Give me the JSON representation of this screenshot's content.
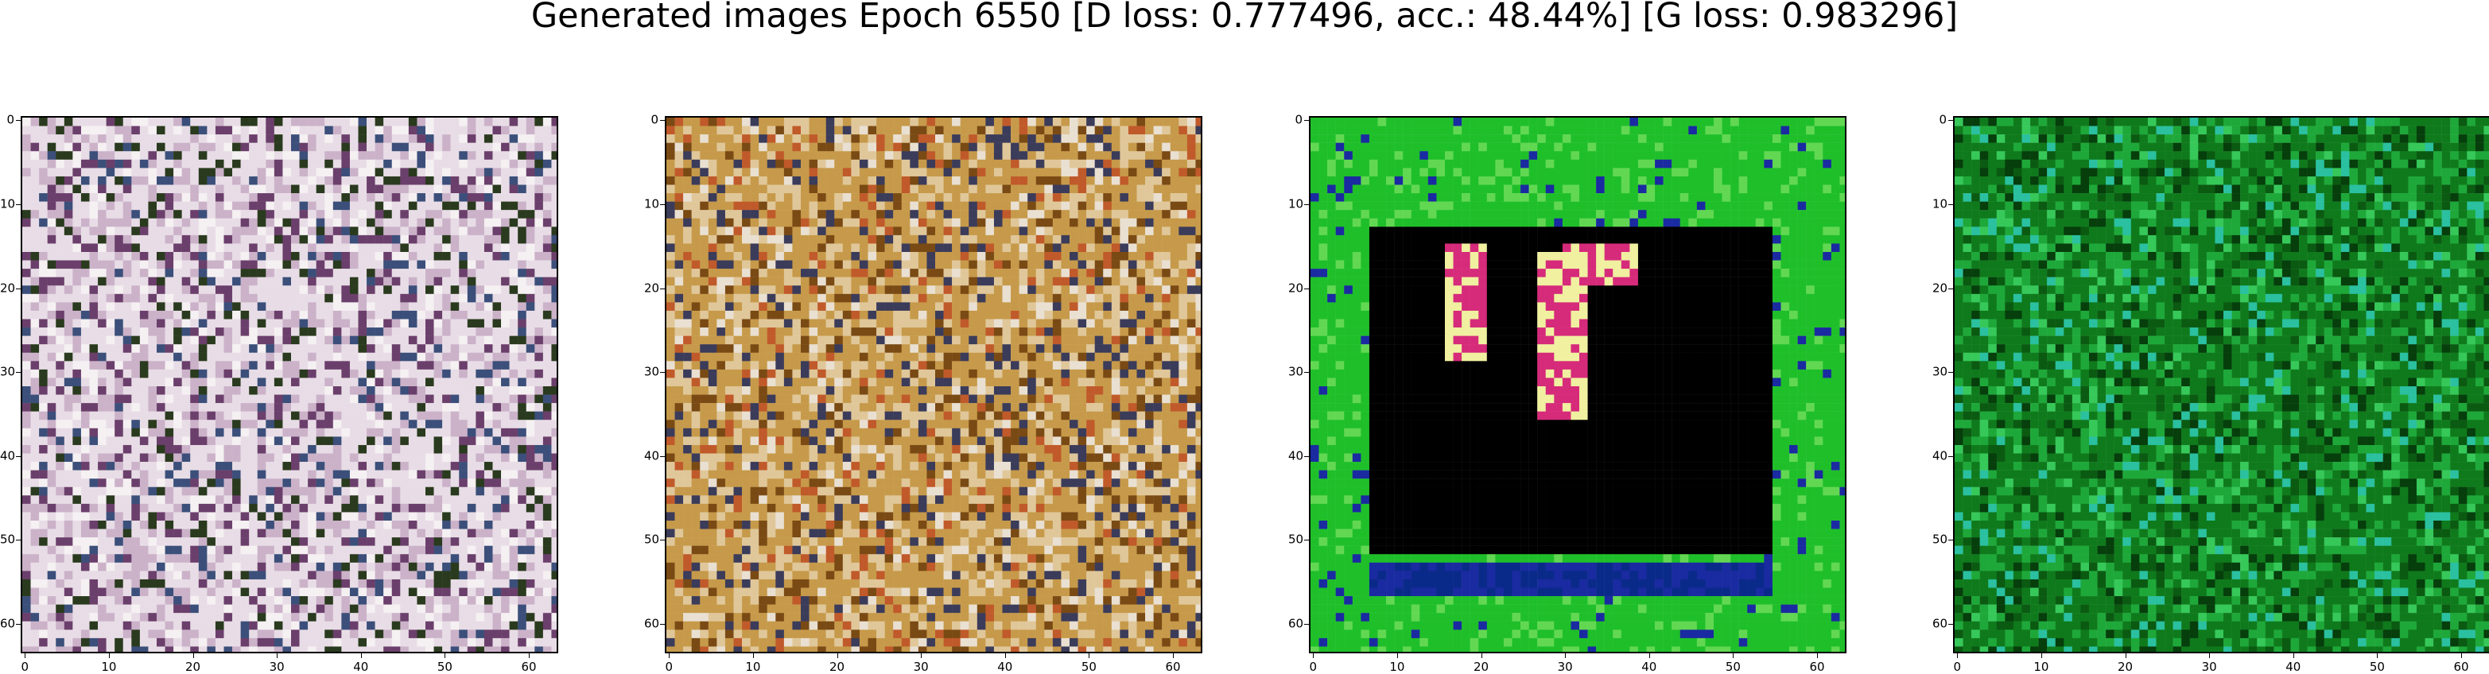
{
  "figure": {
    "title": "Generated images Epoch 6550 [D loss: 0.777496, acc.: 48.44%] [G loss: 0.983296]"
  },
  "axes": {
    "xticks": [
      "0",
      "10",
      "20",
      "30",
      "40",
      "50",
      "60"
    ],
    "yticks": [
      "0",
      "10",
      "20",
      "30",
      "40",
      "50",
      "60"
    ]
  },
  "panels": [
    {
      "id": "sample-1",
      "palette": "pastel-white-purple",
      "colors": [
        "#e8dde6",
        "#cbb2c9",
        "#6b3f6b",
        "#2a3a1e",
        "#f5f0f2",
        "#3b4f7a"
      ]
    },
    {
      "id": "sample-2",
      "palette": "tan-ochre",
      "colors": [
        "#c69a4a",
        "#e0c79a",
        "#7a4a14",
        "#e9e0d2",
        "#3b3b5a",
        "#c05a2a"
      ]
    },
    {
      "id": "sample-3",
      "palette": "green-black-frame",
      "colors": [
        "#1fbf2a",
        "#000000",
        "#d62a7a",
        "#f0f0a0",
        "#1a2aa0",
        "#62d852"
      ]
    },
    {
      "id": "sample-4",
      "palette": "dark-green",
      "colors": [
        "#0f7a1c",
        "#1fa83a",
        "#0b5a12",
        "#2ac0a0",
        "#063e0c",
        "#37c85a"
      ]
    }
  ]
}
